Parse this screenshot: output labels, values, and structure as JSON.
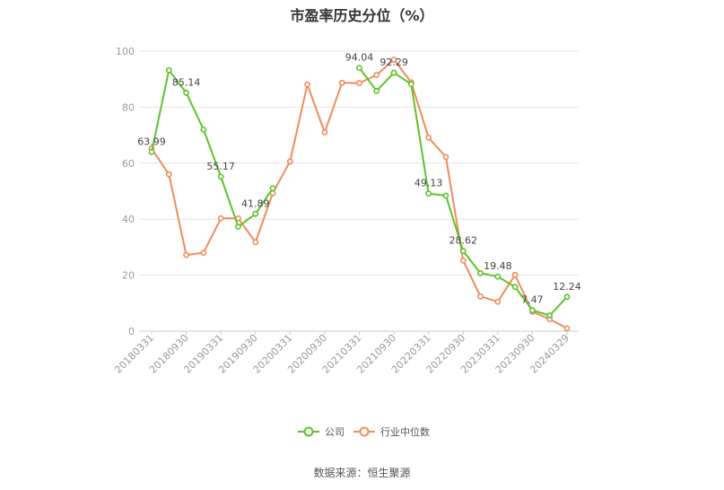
{
  "chart_data": {
    "type": "line",
    "title": "市盈率历史分位（%）",
    "ylim": [
      0,
      100
    ],
    "yticks": [
      0,
      20,
      40,
      60,
      80,
      100
    ],
    "grid": true,
    "legend_position": "bottom",
    "x": [
      "20180331",
      "20180630",
      "20180930",
      "20181231",
      "20190331",
      "20190630",
      "20190930",
      "20191231",
      "20200331",
      "20200630",
      "20200930",
      "20201231",
      "20210331",
      "20210630",
      "20210930",
      "20211231",
      "20220331",
      "20220630",
      "20220930",
      "20221231",
      "20230331",
      "20230630",
      "20230930",
      "20231231",
      "20240329"
    ],
    "xtick_labels": [
      "20180331",
      "20180930",
      "20190331",
      "20190930",
      "20200331",
      "20200930",
      "20210331",
      "20210930",
      "20220331",
      "20220930",
      "20230331",
      "20230930",
      "20240329"
    ],
    "series": [
      {
        "name": "公司",
        "color": "#5cc42a",
        "values": [
          63.99,
          93.2,
          85.14,
          72.0,
          55.17,
          37.3,
          41.89,
          51.0,
          null,
          null,
          null,
          null,
          94.04,
          85.8,
          92.29,
          88.2,
          49.13,
          48.4,
          28.62,
          20.7,
          19.48,
          15.8,
          7.47,
          5.6,
          12.24
        ]
      },
      {
        "name": "行业中位数",
        "color": "#f08c5a",
        "values": [
          65.2,
          56.0,
          27.2,
          28.0,
          40.3,
          40.3,
          31.8,
          49.3,
          60.6,
          88.1,
          71.0,
          88.7,
          88.6,
          91.5,
          97.0,
          88.8,
          69.1,
          62.2,
          25.2,
          12.4,
          10.5,
          20.1,
          6.9,
          4.3,
          1.0
        ]
      }
    ],
    "data_labels": [
      {
        "series": 0,
        "index": 0,
        "text": "63.99"
      },
      {
        "series": 0,
        "index": 2,
        "text": "85.14"
      },
      {
        "series": 0,
        "index": 4,
        "text": "55.17"
      },
      {
        "series": 0,
        "index": 6,
        "text": "41.89"
      },
      {
        "series": 0,
        "index": 12,
        "text": "94.04"
      },
      {
        "series": 0,
        "index": 14,
        "text": "92.29"
      },
      {
        "series": 0,
        "index": 16,
        "text": "49.13"
      },
      {
        "series": 0,
        "index": 18,
        "text": "28.62"
      },
      {
        "series": 0,
        "index": 20,
        "text": "19.48"
      },
      {
        "series": 0,
        "index": 22,
        "text": "7.47"
      },
      {
        "series": 0,
        "index": 24,
        "text": "12.24"
      }
    ]
  },
  "source_text": "数据来源：恒生聚源"
}
